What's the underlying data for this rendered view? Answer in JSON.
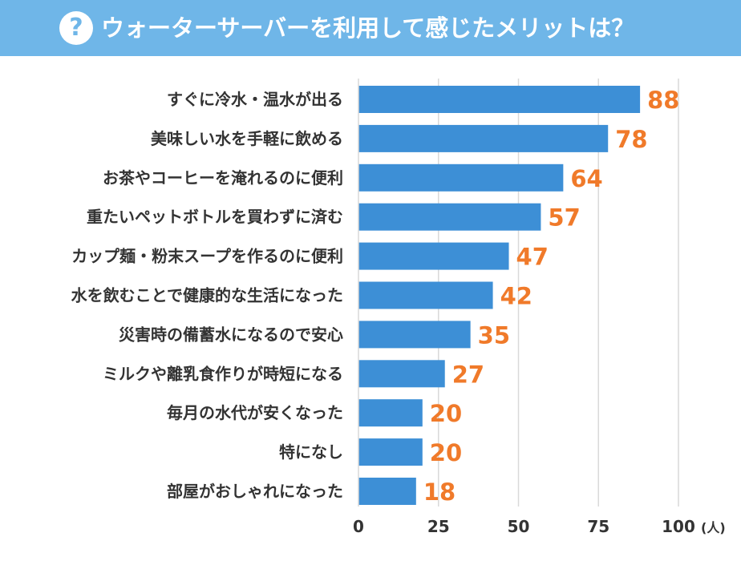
{
  "header": {
    "icon": "?",
    "title": "ウォーターサーバーを利用して感じたメリットは？"
  },
  "chart_data": {
    "type": "bar",
    "orientation": "horizontal",
    "title": "ウォーターサーバーを利用して感じたメリットは？",
    "categories": [
      "すぐに冷水・温水が出る",
      "美味しい水を手軽に飲める",
      "お茶やコーヒーを淹れるのに便利",
      "重たいペットボトルを買わずに済む",
      "カップ麺・粉末スープを作るのに便利",
      "水を飲むことで健康的な生活になった",
      "災害時の備蓄水になるので安心",
      "ミルクや離乳食作りが時短になる",
      "毎月の水代が安くなった",
      "特になし",
      "部屋がおしゃれになった"
    ],
    "values": [
      88,
      78,
      64,
      57,
      47,
      42,
      35,
      27,
      20,
      20,
      18
    ],
    "xlim": [
      0,
      100
    ],
    "xticks": [
      "0",
      "25",
      "50",
      "75",
      "100"
    ],
    "xticks_values": [
      0,
      25,
      50,
      75,
      100
    ],
    "unit_label": "(人)",
    "grid": true,
    "colors": {
      "bar": "#3d8fd6",
      "value": "#f07a2a",
      "grid": "#d9d9d9",
      "header": "#6fb6e8"
    }
  }
}
